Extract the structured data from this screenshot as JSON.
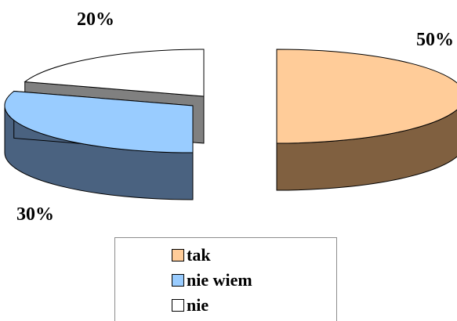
{
  "chart_data": {
    "type": "pie",
    "style": "3d-exploded",
    "categories": [
      "tak",
      "nie wiem",
      "nie"
    ],
    "values": [
      50,
      30,
      20
    ],
    "labels": [
      "50%",
      "30%",
      "20%"
    ],
    "colors": [
      "#ffcc99",
      "#99ccff",
      "#ffffff"
    ],
    "side_colors": [
      "#806040",
      "#4a6280",
      "#808080"
    ],
    "legend": {
      "placement": "bottom",
      "entries": [
        "tak",
        "nie wiem",
        "nie"
      ]
    }
  }
}
